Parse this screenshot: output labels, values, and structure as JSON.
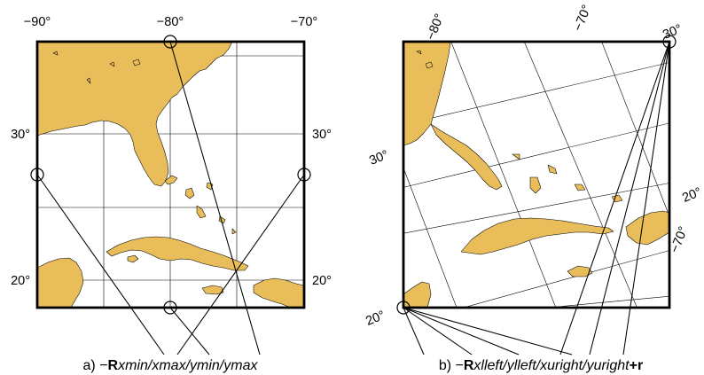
{
  "colors": {
    "land": "#e8bd5a",
    "water": "#ffffff",
    "lines": "#000000"
  },
  "panel_a": {
    "top_labels": [
      "−90°",
      "−80°",
      "−70°"
    ],
    "left_labels": [
      "30°",
      "20°"
    ],
    "right_labels": [
      "30°",
      "20°"
    ],
    "caption": {
      "prefix": "a) −",
      "flag": "R",
      "args": "xmin/xmax/ymin/ymax"
    }
  },
  "panel_b": {
    "top_labels": [
      "−80°",
      "−70°",
      "30°"
    ],
    "left_labels": [
      "30°",
      "20°"
    ],
    "right_labels": [
      "20°",
      "−70°"
    ],
    "caption": {
      "prefix": "b) −",
      "flag": "R",
      "args": "xlleft/ylleft/xuright/yuright",
      "suffix": "+r"
    }
  }
}
